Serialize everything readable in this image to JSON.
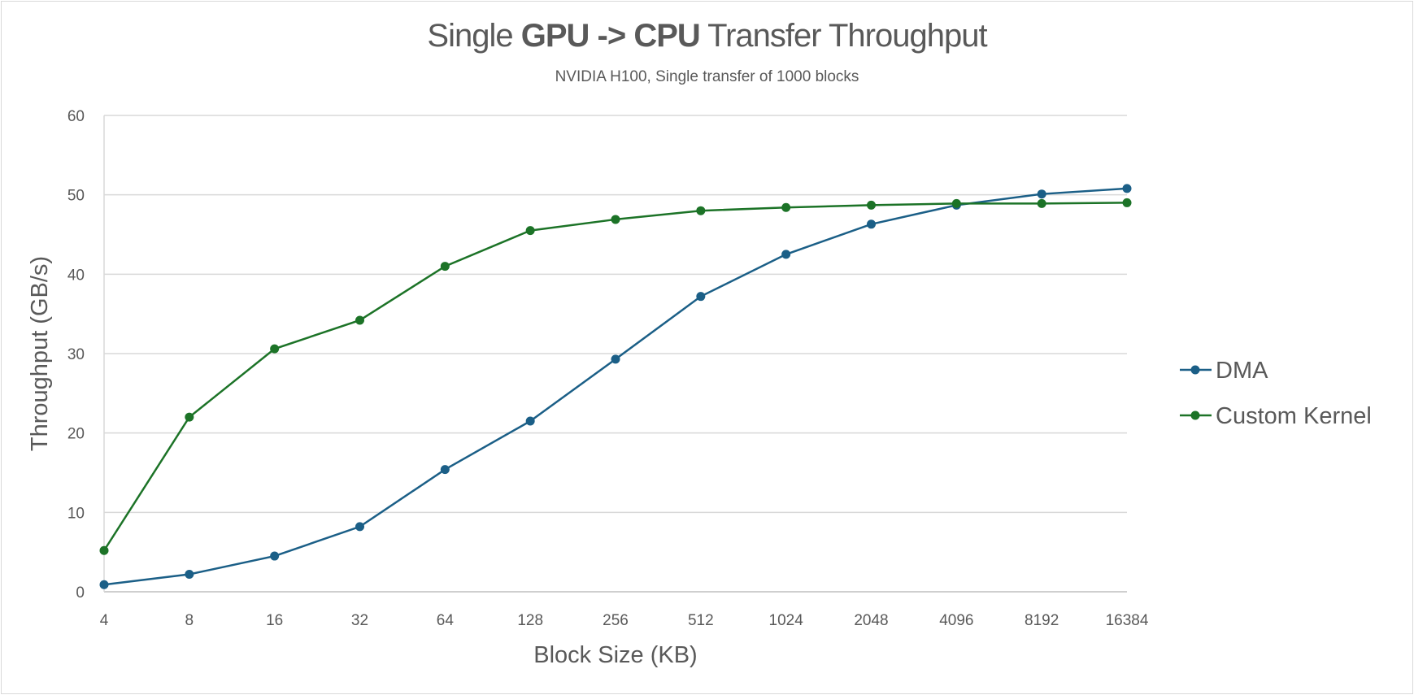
{
  "chart_data": {
    "type": "line",
    "title": {
      "prefix": "Single ",
      "bold1": "GPU",
      "middle": " -> ",
      "bold2": "CPU",
      "suffix": " Transfer Throughput"
    },
    "subtitle": "NVIDIA H100, Single transfer of 1000 blocks",
    "xlabel": "Block Size (KB)",
    "ylabel": "Throughput (GB/s)",
    "categories": [
      "4",
      "8",
      "16",
      "32",
      "64",
      "128",
      "256",
      "512",
      "1024",
      "2048",
      "4096",
      "8192",
      "16384"
    ],
    "ylim": [
      0,
      60
    ],
    "yticks": [
      0,
      10,
      20,
      30,
      40,
      50,
      60
    ],
    "grid": true,
    "legend": "right",
    "series": [
      {
        "name": "DMA",
        "color": "#1b5f87",
        "values": [
          0.9,
          2.2,
          4.5,
          8.2,
          15.4,
          21.5,
          29.3,
          37.2,
          42.5,
          46.3,
          48.7,
          50.1,
          50.8
        ]
      },
      {
        "name": "Custom Kernel",
        "color": "#1c7327",
        "values": [
          5.2,
          22.0,
          30.6,
          34.2,
          41.0,
          45.5,
          46.9,
          48.0,
          48.4,
          48.7,
          48.9,
          48.9,
          49.0
        ]
      }
    ]
  }
}
